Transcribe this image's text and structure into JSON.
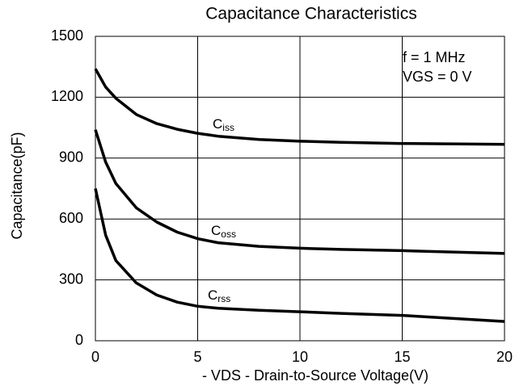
{
  "chart_data": {
    "type": "line",
    "title": "Capacitance Characteristics",
    "x_label": "- VDS - Drain-to-Source Voltage(V)",
    "y_label": "Capacitance(pF)",
    "annotations": [
      "f = 1 MHz",
      "VGS = 0 V"
    ],
    "x": [
      0,
      0.5,
      1,
      2,
      3,
      4,
      5,
      6,
      8,
      10,
      12,
      15,
      20
    ],
    "series": [
      {
        "name": "Ciss",
        "color": "#000000",
        "values": [
          1340,
          1250,
          1195,
          1115,
          1070,
          1042,
          1022,
          1008,
          992,
          983,
          978,
          972,
          968
        ]
      },
      {
        "name": "Coss",
        "color": "#000000",
        "values": [
          1040,
          880,
          775,
          655,
          585,
          535,
          503,
          483,
          465,
          456,
          450,
          444,
          430
        ]
      },
      {
        "name": "Crss",
        "color": "#000000",
        "values": [
          750,
          520,
          395,
          285,
          225,
          190,
          170,
          160,
          150,
          143,
          135,
          125,
          95
        ]
      }
    ],
    "xlim": [
      0,
      20
    ],
    "xticks": [
      0,
      5,
      10,
      15,
      20
    ],
    "ylim": [
      0,
      1500
    ],
    "yticks": [
      0,
      300,
      600,
      900,
      1200,
      1500
    ],
    "grid": true
  }
}
